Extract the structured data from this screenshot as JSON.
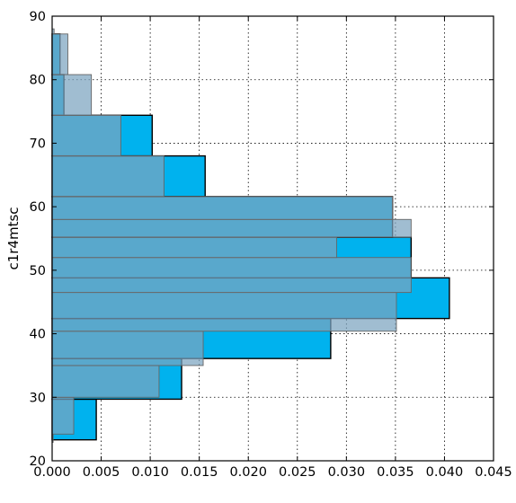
{
  "chart_data": {
    "type": "bar",
    "orientation": "horizontal",
    "title": "",
    "xlabel": "",
    "ylabel": "c1r4mtsc",
    "xlim": [
      0,
      0.045
    ],
    "ylim": [
      20,
      90
    ],
    "x_ticks": [
      "0.000",
      "0.005",
      "0.010",
      "0.015",
      "0.020",
      "0.025",
      "0.030",
      "0.035",
      "0.040",
      "0.045"
    ],
    "y_ticks": [
      "20",
      "30",
      "40",
      "50",
      "60",
      "70",
      "80",
      "90"
    ],
    "grid": true,
    "series": [
      {
        "color": "#00b2ee",
        "opacity": 1,
        "outline": "#000000",
        "bins": [
          {
            "y0": 23.3,
            "y1": 29.7,
            "value": 0.0045
          },
          {
            "y0": 29.7,
            "y1": 36.1,
            "value": 0.0132
          },
          {
            "y0": 36.1,
            "y1": 42.4,
            "value": 0.0284
          },
          {
            "y0": 42.4,
            "y1": 48.8,
            "value": 0.0405
          },
          {
            "y0": 48.8,
            "y1": 55.2,
            "value": 0.0366
          },
          {
            "y0": 55.2,
            "y1": 61.6,
            "value": 0.0347
          },
          {
            "y0": 61.6,
            "y1": 68.0,
            "value": 0.0156
          },
          {
            "y0": 68.0,
            "y1": 74.4,
            "value": 0.0102
          },
          {
            "y0": 74.4,
            "y1": 80.8,
            "value": 0.0012
          },
          {
            "y0": 80.8,
            "y1": 87.2,
            "value": 0.0008
          }
        ]
      },
      {
        "color": "#7ba3bf",
        "opacity": 0.72,
        "outline": "#666666",
        "bins": [
          {
            "y0": 22.9,
            "y1": 24.2,
            "value": 0.0001
          },
          {
            "y0": 24.2,
            "y1": 30.0,
            "value": 0.0022
          },
          {
            "y0": 30.0,
            "y1": 35.0,
            "value": 0.0109
          },
          {
            "y0": 35.0,
            "y1": 40.4,
            "value": 0.0154
          },
          {
            "y0": 40.4,
            "y1": 46.5,
            "value": 0.0351
          },
          {
            "y0": 46.5,
            "y1": 52.0,
            "value": 0.0366
          },
          {
            "y0": 52.0,
            "y1": 55.2,
            "value": 0.029
          },
          {
            "y0": 55.2,
            "y1": 58.0,
            "value": 0.0366
          },
          {
            "y0": 58.0,
            "y1": 61.6,
            "value": 0.0347
          },
          {
            "y0": 61.6,
            "y1": 68.0,
            "value": 0.0114
          },
          {
            "y0": 68.0,
            "y1": 74.4,
            "value": 0.007
          },
          {
            "y0": 74.4,
            "y1": 80.8,
            "value": 0.004
          },
          {
            "y0": 80.8,
            "y1": 87.2,
            "value": 0.0016
          },
          {
            "y0": 87.2,
            "y1": 88.0,
            "value": 0.0002
          }
        ]
      }
    ]
  }
}
